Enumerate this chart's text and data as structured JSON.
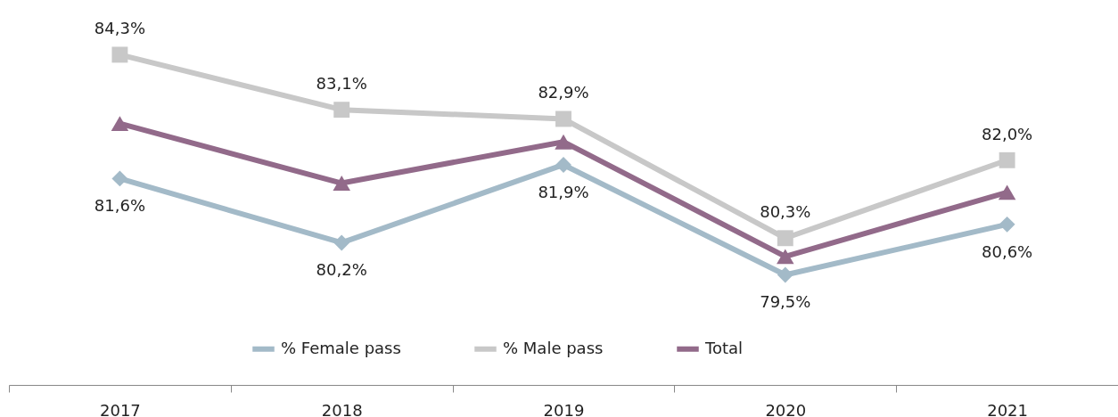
{
  "chart_data": {
    "type": "line",
    "categories": [
      "2017",
      "2018",
      "2019",
      "2020",
      "2021"
    ],
    "series": [
      {
        "name": "% Female pass",
        "color": "#a3bac8",
        "marker": "diamond",
        "values": [
          81.6,
          80.2,
          81.9,
          79.5,
          80.6
        ],
        "value_labels": [
          "81,6%",
          "80,2%",
          "81,9%",
          "79,5%",
          "80,6%"
        ]
      },
      {
        "name": "% Male pass",
        "color": "#c8c8c8",
        "marker": "square",
        "values": [
          84.3,
          83.1,
          82.9,
          80.3,
          82.0
        ],
        "value_labels": [
          "84,3%",
          "83,1%",
          "82,9%",
          "80,3%",
          "82,0%"
        ]
      },
      {
        "name": "Total",
        "color": "#926a8a",
        "marker": "triangle",
        "values": [
          82.8,
          81.5,
          82.4,
          79.9,
          81.3
        ]
      }
    ],
    "legend": "bottom",
    "grid": false,
    "line_style": "solid"
  }
}
